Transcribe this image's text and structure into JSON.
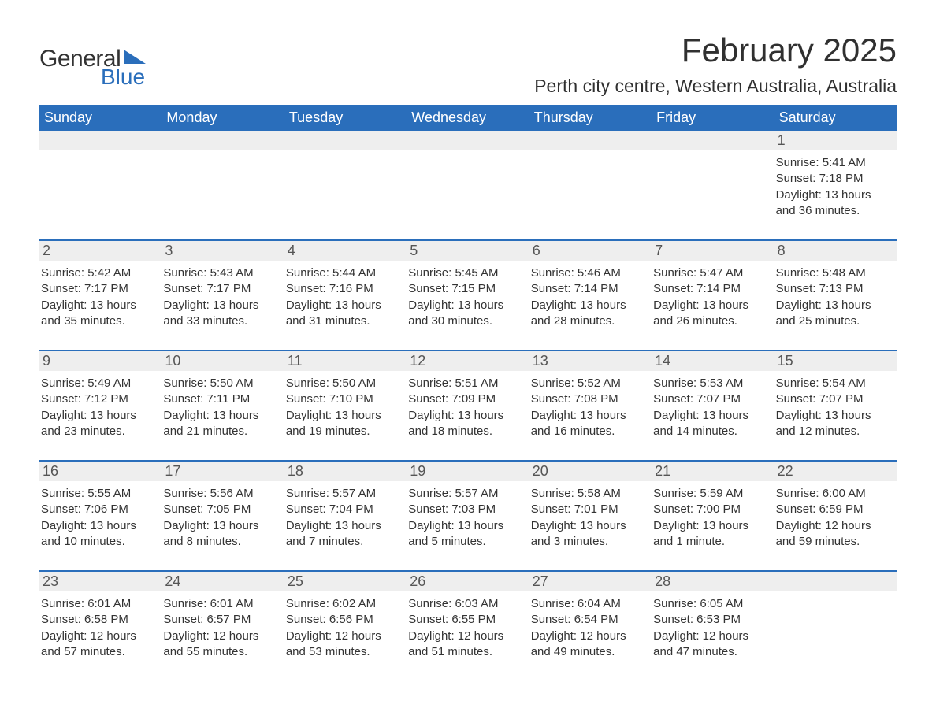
{
  "logo": {
    "text1": "General",
    "text2": "Blue",
    "tri_color": "#2a6ebb"
  },
  "title": "February 2025",
  "location": "Perth city centre, Western Australia, Australia",
  "colors": {
    "header_bg": "#2a6ebb",
    "header_text": "#ffffff",
    "daynum_bg": "#eeeeee",
    "border": "#2a6ebb",
    "body_text": "#333333"
  },
  "weekdays": [
    "Sunday",
    "Monday",
    "Tuesday",
    "Wednesday",
    "Thursday",
    "Friday",
    "Saturday"
  ],
  "weeks": [
    [
      {
        "num": "",
        "lines": []
      },
      {
        "num": "",
        "lines": []
      },
      {
        "num": "",
        "lines": []
      },
      {
        "num": "",
        "lines": []
      },
      {
        "num": "",
        "lines": []
      },
      {
        "num": "",
        "lines": []
      },
      {
        "num": "1",
        "lines": [
          "Sunrise: 5:41 AM",
          "Sunset: 7:18 PM",
          "Daylight: 13 hours and 36 minutes."
        ]
      }
    ],
    [
      {
        "num": "2",
        "lines": [
          "Sunrise: 5:42 AM",
          "Sunset: 7:17 PM",
          "Daylight: 13 hours and 35 minutes."
        ]
      },
      {
        "num": "3",
        "lines": [
          "Sunrise: 5:43 AM",
          "Sunset: 7:17 PM",
          "Daylight: 13 hours and 33 minutes."
        ]
      },
      {
        "num": "4",
        "lines": [
          "Sunrise: 5:44 AM",
          "Sunset: 7:16 PM",
          "Daylight: 13 hours and 31 minutes."
        ]
      },
      {
        "num": "5",
        "lines": [
          "Sunrise: 5:45 AM",
          "Sunset: 7:15 PM",
          "Daylight: 13 hours and 30 minutes."
        ]
      },
      {
        "num": "6",
        "lines": [
          "Sunrise: 5:46 AM",
          "Sunset: 7:14 PM",
          "Daylight: 13 hours and 28 minutes."
        ]
      },
      {
        "num": "7",
        "lines": [
          "Sunrise: 5:47 AM",
          "Sunset: 7:14 PM",
          "Daylight: 13 hours and 26 minutes."
        ]
      },
      {
        "num": "8",
        "lines": [
          "Sunrise: 5:48 AM",
          "Sunset: 7:13 PM",
          "Daylight: 13 hours and 25 minutes."
        ]
      }
    ],
    [
      {
        "num": "9",
        "lines": [
          "Sunrise: 5:49 AM",
          "Sunset: 7:12 PM",
          "Daylight: 13 hours and 23 minutes."
        ]
      },
      {
        "num": "10",
        "lines": [
          "Sunrise: 5:50 AM",
          "Sunset: 7:11 PM",
          "Daylight: 13 hours and 21 minutes."
        ]
      },
      {
        "num": "11",
        "lines": [
          "Sunrise: 5:50 AM",
          "Sunset: 7:10 PM",
          "Daylight: 13 hours and 19 minutes."
        ]
      },
      {
        "num": "12",
        "lines": [
          "Sunrise: 5:51 AM",
          "Sunset: 7:09 PM",
          "Daylight: 13 hours and 18 minutes."
        ]
      },
      {
        "num": "13",
        "lines": [
          "Sunrise: 5:52 AM",
          "Sunset: 7:08 PM",
          "Daylight: 13 hours and 16 minutes."
        ]
      },
      {
        "num": "14",
        "lines": [
          "Sunrise: 5:53 AM",
          "Sunset: 7:07 PM",
          "Daylight: 13 hours and 14 minutes."
        ]
      },
      {
        "num": "15",
        "lines": [
          "Sunrise: 5:54 AM",
          "Sunset: 7:07 PM",
          "Daylight: 13 hours and 12 minutes."
        ]
      }
    ],
    [
      {
        "num": "16",
        "lines": [
          "Sunrise: 5:55 AM",
          "Sunset: 7:06 PM",
          "Daylight: 13 hours and 10 minutes."
        ]
      },
      {
        "num": "17",
        "lines": [
          "Sunrise: 5:56 AM",
          "Sunset: 7:05 PM",
          "Daylight: 13 hours and 8 minutes."
        ]
      },
      {
        "num": "18",
        "lines": [
          "Sunrise: 5:57 AM",
          "Sunset: 7:04 PM",
          "Daylight: 13 hours and 7 minutes."
        ]
      },
      {
        "num": "19",
        "lines": [
          "Sunrise: 5:57 AM",
          "Sunset: 7:03 PM",
          "Daylight: 13 hours and 5 minutes."
        ]
      },
      {
        "num": "20",
        "lines": [
          "Sunrise: 5:58 AM",
          "Sunset: 7:01 PM",
          "Daylight: 13 hours and 3 minutes."
        ]
      },
      {
        "num": "21",
        "lines": [
          "Sunrise: 5:59 AM",
          "Sunset: 7:00 PM",
          "Daylight: 13 hours and 1 minute."
        ]
      },
      {
        "num": "22",
        "lines": [
          "Sunrise: 6:00 AM",
          "Sunset: 6:59 PM",
          "Daylight: 12 hours and 59 minutes."
        ]
      }
    ],
    [
      {
        "num": "23",
        "lines": [
          "Sunrise: 6:01 AM",
          "Sunset: 6:58 PM",
          "Daylight: 12 hours and 57 minutes."
        ]
      },
      {
        "num": "24",
        "lines": [
          "Sunrise: 6:01 AM",
          "Sunset: 6:57 PM",
          "Daylight: 12 hours and 55 minutes."
        ]
      },
      {
        "num": "25",
        "lines": [
          "Sunrise: 6:02 AM",
          "Sunset: 6:56 PM",
          "Daylight: 12 hours and 53 minutes."
        ]
      },
      {
        "num": "26",
        "lines": [
          "Sunrise: 6:03 AM",
          "Sunset: 6:55 PM",
          "Daylight: 12 hours and 51 minutes."
        ]
      },
      {
        "num": "27",
        "lines": [
          "Sunrise: 6:04 AM",
          "Sunset: 6:54 PM",
          "Daylight: 12 hours and 49 minutes."
        ]
      },
      {
        "num": "28",
        "lines": [
          "Sunrise: 6:05 AM",
          "Sunset: 6:53 PM",
          "Daylight: 12 hours and 47 minutes."
        ]
      },
      {
        "num": "",
        "lines": []
      }
    ]
  ]
}
